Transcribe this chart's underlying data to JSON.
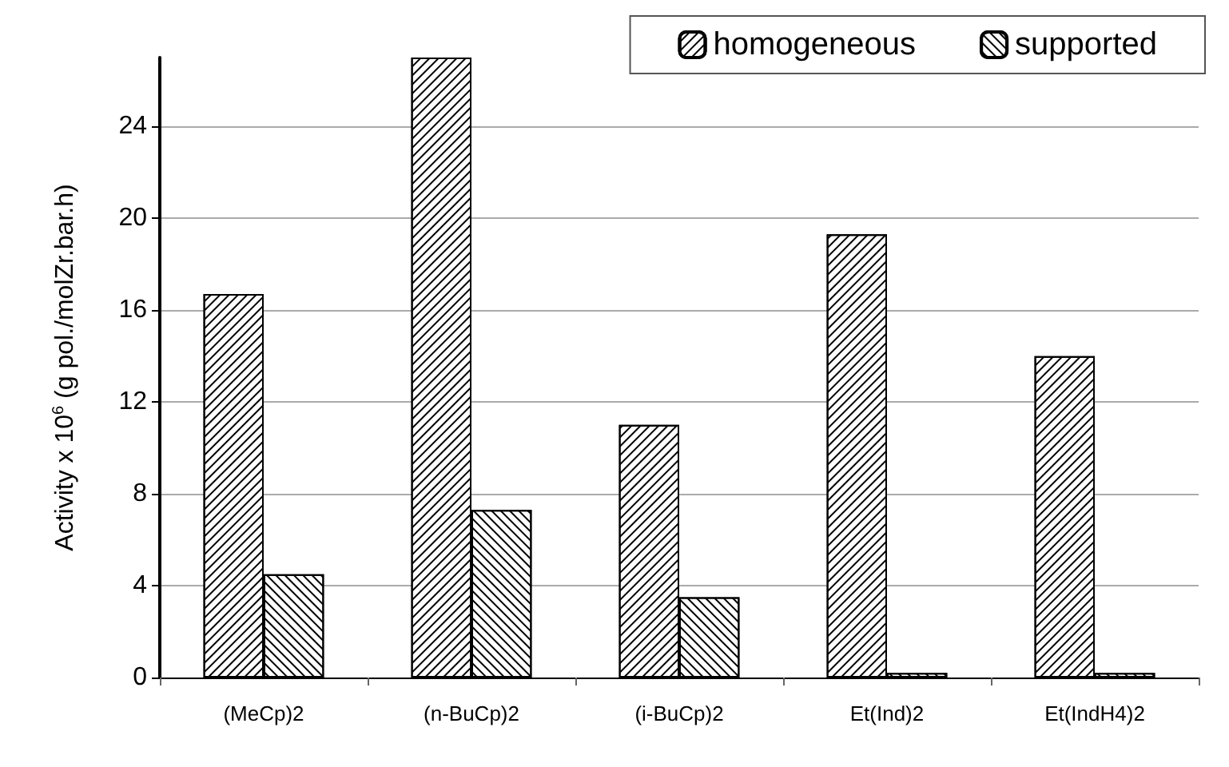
{
  "chart_data": {
    "type": "bar",
    "categories": [
      "(MeCp)2",
      "(n-BuCp)2",
      "(i-BuCp)2",
      "Et(Ind)2",
      "Et(IndH4)2"
    ],
    "series": [
      {
        "name": "homogeneous",
        "color": "#ffffff",
        "values": [
          16.7,
          27,
          11.0,
          19.3,
          14.0
        ]
      },
      {
        "name": "supported",
        "color": "#ffffff",
        "values": [
          4.5,
          7.3,
          3.5,
          0.2,
          0.2
        ]
      }
    ],
    "ylabel": "Activity x 10$^{6}$ (g pol./molZr.bar.h)",
    "ylim": [
      0,
      27
    ],
    "yticks": [
      0,
      4,
      8,
      12,
      16,
      20,
      24
    ],
    "grid": "y",
    "legend": "top right"
  }
}
